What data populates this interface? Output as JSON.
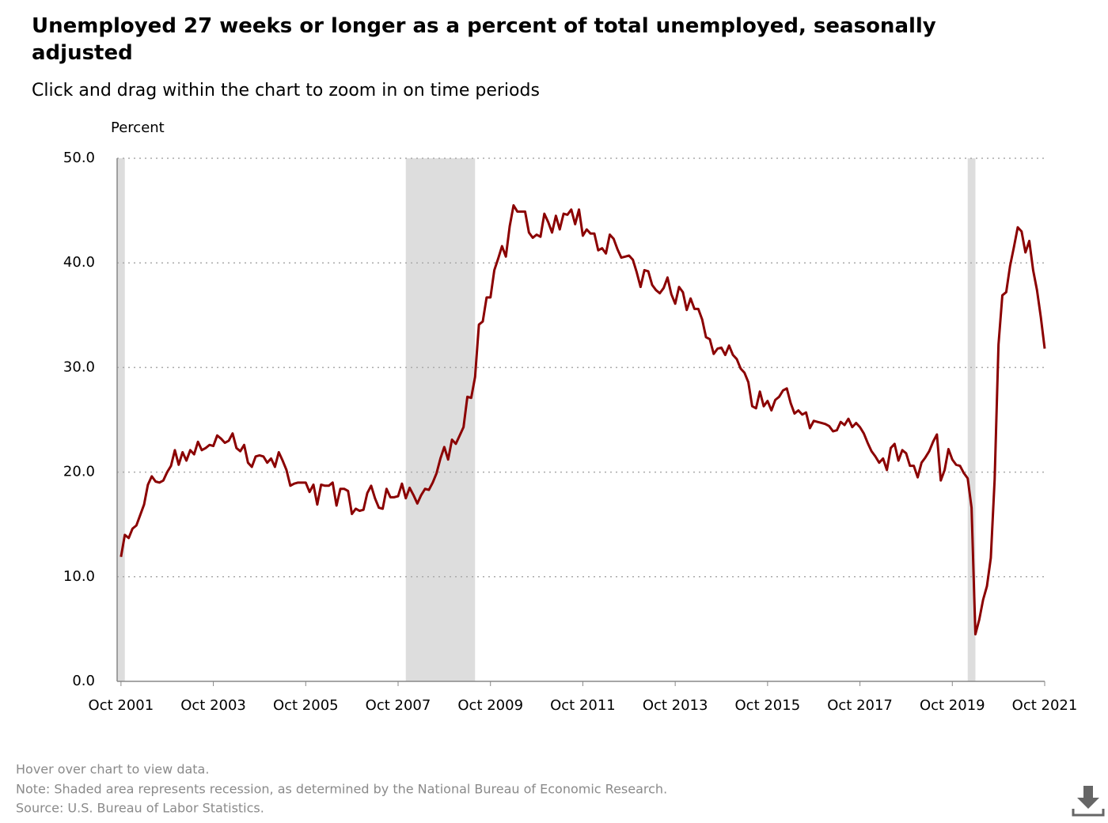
{
  "chart_data": {
    "type": "line",
    "title": "Unemployed 27 weeks or longer as a percent of total unemployed, seasonally adjusted",
    "subtitle": "Click and drag within the chart to zoom in on time periods",
    "y_label": "Percent",
    "x": [
      "2001-10",
      "2001-11",
      "2001-12",
      "2002-01",
      "2002-02",
      "2002-03",
      "2002-04",
      "2002-05",
      "2002-06",
      "2002-07",
      "2002-08",
      "2002-09",
      "2002-10",
      "2002-11",
      "2002-12",
      "2003-01",
      "2003-02",
      "2003-03",
      "2003-04",
      "2003-05",
      "2003-06",
      "2003-07",
      "2003-08",
      "2003-09",
      "2003-10",
      "2003-11",
      "2003-12",
      "2004-01",
      "2004-02",
      "2004-03",
      "2004-04",
      "2004-05",
      "2004-06",
      "2004-07",
      "2004-08",
      "2004-09",
      "2004-10",
      "2004-11",
      "2004-12",
      "2005-01",
      "2005-02",
      "2005-03",
      "2005-04",
      "2005-05",
      "2005-06",
      "2005-07",
      "2005-08",
      "2005-09",
      "2005-10",
      "2005-11",
      "2005-12",
      "2006-01",
      "2006-02",
      "2006-03",
      "2006-04",
      "2006-05",
      "2006-06",
      "2006-07",
      "2006-08",
      "2006-09",
      "2006-10",
      "2006-11",
      "2006-12",
      "2007-01",
      "2007-02",
      "2007-03",
      "2007-04",
      "2007-05",
      "2007-06",
      "2007-07",
      "2007-08",
      "2007-09",
      "2007-10",
      "2007-11",
      "2007-12",
      "2008-01",
      "2008-02",
      "2008-03",
      "2008-04",
      "2008-05",
      "2008-06",
      "2008-07",
      "2008-08",
      "2008-09",
      "2008-10",
      "2008-11",
      "2008-12",
      "2009-01",
      "2009-02",
      "2009-03",
      "2009-04",
      "2009-05",
      "2009-06",
      "2009-07",
      "2009-08",
      "2009-09",
      "2009-10",
      "2009-11",
      "2009-12",
      "2010-01",
      "2010-02",
      "2010-03",
      "2010-04",
      "2010-05",
      "2010-06",
      "2010-07",
      "2010-08",
      "2010-09",
      "2010-10",
      "2010-11",
      "2010-12",
      "2011-01",
      "2011-02",
      "2011-03",
      "2011-04",
      "2011-05",
      "2011-06",
      "2011-07",
      "2011-08",
      "2011-09",
      "2011-10",
      "2011-11",
      "2011-12",
      "2012-01",
      "2012-02",
      "2012-03",
      "2012-04",
      "2012-05",
      "2012-06",
      "2012-07",
      "2012-08",
      "2012-09",
      "2012-10",
      "2012-11",
      "2012-12",
      "2013-01",
      "2013-02",
      "2013-03",
      "2013-04",
      "2013-05",
      "2013-06",
      "2013-07",
      "2013-08",
      "2013-09",
      "2013-10",
      "2013-11",
      "2013-12",
      "2014-01",
      "2014-02",
      "2014-03",
      "2014-04",
      "2014-05",
      "2014-06",
      "2014-07",
      "2014-08",
      "2014-09",
      "2014-10",
      "2014-11",
      "2014-12",
      "2015-01",
      "2015-02",
      "2015-03",
      "2015-04",
      "2015-05",
      "2015-06",
      "2015-07",
      "2015-08",
      "2015-09",
      "2015-10",
      "2015-11",
      "2015-12",
      "2016-01",
      "2016-02",
      "2016-03",
      "2016-04",
      "2016-05",
      "2016-06",
      "2016-07",
      "2016-08",
      "2016-09",
      "2016-10",
      "2016-11",
      "2016-12",
      "2017-01",
      "2017-02",
      "2017-03",
      "2017-04",
      "2017-05",
      "2017-06",
      "2017-07",
      "2017-08",
      "2017-09",
      "2017-10",
      "2017-11",
      "2017-12",
      "2018-01",
      "2018-02",
      "2018-03",
      "2018-04",
      "2018-05",
      "2018-06",
      "2018-07",
      "2018-08",
      "2018-09",
      "2018-10",
      "2018-11",
      "2018-12",
      "2019-01",
      "2019-02",
      "2019-03",
      "2019-04",
      "2019-05",
      "2019-06",
      "2019-07",
      "2019-08",
      "2019-09",
      "2019-10",
      "2019-11",
      "2019-12",
      "2020-01",
      "2020-02",
      "2020-03",
      "2020-04",
      "2020-05",
      "2020-06",
      "2020-07",
      "2020-08",
      "2020-09",
      "2020-10",
      "2020-11",
      "2020-12",
      "2021-01",
      "2021-02",
      "2021-03",
      "2021-04",
      "2021-05",
      "2021-06",
      "2021-07",
      "2021-08",
      "2021-09",
      "2021-10"
    ],
    "series": [
      {
        "color": "#8b0000",
        "values": [
          11.9,
          14.0,
          13.7,
          14.6,
          14.9,
          15.9,
          16.9,
          18.8,
          19.6,
          19.1,
          19.0,
          19.2,
          20.0,
          20.6,
          22.1,
          20.7,
          21.9,
          21.1,
          22.1,
          21.7,
          22.9,
          22.1,
          22.3,
          22.6,
          22.5,
          23.5,
          23.2,
          22.8,
          23.0,
          23.7,
          22.3,
          22.0,
          22.6,
          20.9,
          20.5,
          21.5,
          21.6,
          21.5,
          20.9,
          21.3,
          20.5,
          21.9,
          21.1,
          20.2,
          18.7,
          18.9,
          19.0,
          19.0,
          19.0,
          18.1,
          18.8,
          16.9,
          18.8,
          18.7,
          18.7,
          19.0,
          16.8,
          18.4,
          18.4,
          18.2,
          16.0,
          16.5,
          16.3,
          16.4,
          18.0,
          18.7,
          17.5,
          16.6,
          16.5,
          18.4,
          17.6,
          17.6,
          17.7,
          18.9,
          17.5,
          18.5,
          17.8,
          17.0,
          17.8,
          18.4,
          18.3,
          19.0,
          19.9,
          21.3,
          22.4,
          21.2,
          23.1,
          22.7,
          23.5,
          24.3,
          27.2,
          27.1,
          29.1,
          34.1,
          34.4,
          36.7,
          36.7,
          39.3,
          40.4,
          41.6,
          40.6,
          43.5,
          45.5,
          44.9,
          44.9,
          44.9,
          42.9,
          42.4,
          42.7,
          42.5,
          44.7,
          43.9,
          42.9,
          44.5,
          43.2,
          44.7,
          44.6,
          45.1,
          43.7,
          45.1,
          42.6,
          43.2,
          42.8,
          42.8,
          41.2,
          41.4,
          40.9,
          42.7,
          42.3,
          41.3,
          40.5,
          40.6,
          40.7,
          40.3,
          39.1,
          37.7,
          39.3,
          39.2,
          37.9,
          37.4,
          37.1,
          37.6,
          38.6,
          37.0,
          36.1,
          37.7,
          37.2,
          35.5,
          36.6,
          35.6,
          35.6,
          34.6,
          32.9,
          32.7,
          31.3,
          31.8,
          31.9,
          31.2,
          32.1,
          31.2,
          30.8,
          29.9,
          29.5,
          28.6,
          26.3,
          26.1,
          27.7,
          26.3,
          26.8,
          25.9,
          26.9,
          27.2,
          27.8,
          28.0,
          26.6,
          25.6,
          25.9,
          25.5,
          25.7,
          24.2,
          24.9,
          24.8,
          24.7,
          24.6,
          24.4,
          23.9,
          24.0,
          24.8,
          24.5,
          25.1,
          24.3,
          24.7,
          24.3,
          23.7,
          22.8,
          22.0,
          21.5,
          20.9,
          21.3,
          20.2,
          22.3,
          22.7,
          21.1,
          22.1,
          21.8,
          20.6,
          20.6,
          19.5,
          20.9,
          21.4,
          22.0,
          22.9,
          23.6,
          19.2,
          20.2,
          22.2,
          21.2,
          20.7,
          20.6,
          19.9,
          19.4,
          16.6,
          4.5,
          5.9,
          7.8,
          9.1,
          11.8,
          19.3,
          32.2,
          36.9,
          37.2,
          39.7,
          41.5,
          43.4,
          43.0,
          41.0,
          42.1,
          39.3,
          37.4,
          34.8,
          31.8
        ]
      }
    ],
    "xlim": [
      "2001-09",
      "2021-10"
    ],
    "xticks": [
      {
        "value": "2001-10",
        "label": "Oct 2001"
      },
      {
        "value": "2003-10",
        "label": "Oct 2003"
      },
      {
        "value": "2005-10",
        "label": "Oct 2005"
      },
      {
        "value": "2007-10",
        "label": "Oct 2007"
      },
      {
        "value": "2009-10",
        "label": "Oct 2009"
      },
      {
        "value": "2011-10",
        "label": "Oct 2011"
      },
      {
        "value": "2013-10",
        "label": "Oct 2013"
      },
      {
        "value": "2015-10",
        "label": "Oct 2015"
      },
      {
        "value": "2017-10",
        "label": "Oct 2017"
      },
      {
        "value": "2019-10",
        "label": "Oct 2019"
      },
      {
        "value": "2021-10",
        "label": "Oct 2021"
      }
    ],
    "ylim": [
      0,
      50
    ],
    "yticks": [
      {
        "value": 0,
        "label": "0.0"
      },
      {
        "value": 10,
        "label": "10.0"
      },
      {
        "value": 20,
        "label": "20.0"
      },
      {
        "value": 30,
        "label": "30.0"
      },
      {
        "value": 40,
        "label": "40.0"
      },
      {
        "value": 50,
        "label": "50.0"
      }
    ],
    "grid": true,
    "recessions": [
      [
        "2001-03",
        "2001-11"
      ],
      [
        "2007-12",
        "2009-06"
      ],
      [
        "2020-02",
        "2020-04"
      ]
    ],
    "recession_color": "#dddddd",
    "notes": [
      "Hover over chart to view data.",
      "Note: Shaded area represents recession, as determined by the National Bureau of Economic Research.",
      "Source: U.S. Bureau of Labor Statistics."
    ]
  }
}
